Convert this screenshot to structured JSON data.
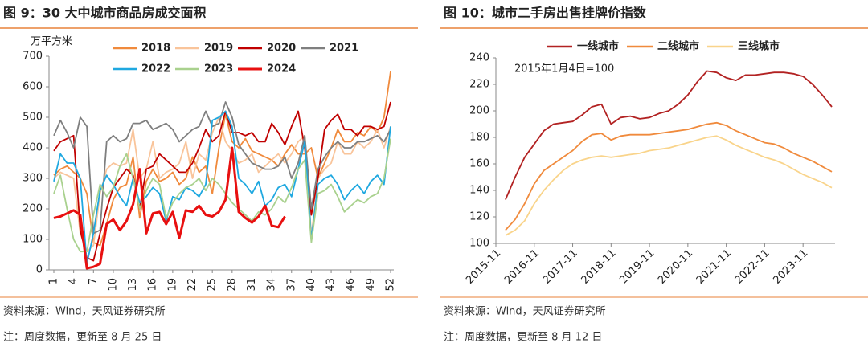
{
  "chart_data": [
    {
      "type": "line",
      "title": "图 9：30 大中城市商品房成交面积",
      "y_label": "万平方米",
      "source": "资料来源：Wind，天风证券研究所",
      "note": "注：周度数据，更新至 8 月 25 日",
      "x": [
        1,
        2,
        3,
        4,
        5,
        6,
        7,
        8,
        9,
        10,
        11,
        12,
        13,
        14,
        15,
        16,
        17,
        18,
        19,
        20,
        21,
        22,
        23,
        24,
        25,
        26,
        27,
        28,
        29,
        30,
        31,
        32,
        33,
        34,
        35,
        36,
        37,
        38,
        39,
        40,
        41,
        42,
        43,
        44,
        45,
        46,
        47,
        48,
        49,
        50,
        51,
        52
      ],
      "xlim": [
        1,
        52
      ],
      "xticks": [
        1,
        4,
        7,
        10,
        13,
        16,
        19,
        22,
        25,
        28,
        31,
        34,
        37,
        40,
        43,
        46,
        49,
        52
      ],
      "ylim": [
        0,
        700
      ],
      "yticks": [
        0,
        100,
        200,
        300,
        400,
        500,
        600,
        700
      ],
      "legend": "top",
      "series": [
        {
          "name": "2018",
          "color": "#F08A3C",
          "values": [
            310,
            330,
            340,
            320,
            300,
            250,
            90,
            80,
            150,
            230,
            270,
            280,
            370,
            170,
            290,
            330,
            290,
            300,
            320,
            280,
            300,
            370,
            320,
            340,
            250,
            400,
            510,
            420,
            400,
            430,
            390,
            380,
            370,
            360,
            340,
            380,
            410,
            380,
            380,
            400,
            300,
            350,
            400,
            460,
            420,
            420,
            450,
            440,
            470,
            450,
            500,
            650
          ]
        },
        {
          "name": "2019",
          "color": "#F9C49A",
          "values": [
            300,
            320,
            310,
            300,
            120,
            60,
            80,
            250,
            330,
            350,
            340,
            350,
            460,
            300,
            330,
            420,
            300,
            320,
            330,
            350,
            420,
            300,
            380,
            360,
            450,
            500,
            420,
            390,
            350,
            360,
            380,
            320,
            340,
            360,
            380,
            350,
            380,
            420,
            440,
            110,
            300,
            330,
            350,
            420,
            380,
            380,
            420,
            400,
            420,
            460,
            400,
            470
          ]
        },
        {
          "name": "2020",
          "color": "#C00000",
          "values": [
            390,
            420,
            430,
            440,
            130,
            40,
            30,
            120,
            200,
            270,
            300,
            330,
            310,
            200,
            330,
            340,
            380,
            360,
            340,
            320,
            320,
            350,
            400,
            460,
            420,
            440,
            520,
            450,
            450,
            440,
            450,
            420,
            420,
            480,
            450,
            410,
            470,
            520,
            400,
            180,
            300,
            460,
            490,
            510,
            460,
            460,
            440,
            470,
            470,
            460,
            470,
            550
          ]
        },
        {
          "name": "2021",
          "color": "#7F7F7F",
          "values": [
            440,
            490,
            450,
            400,
            500,
            470,
            120,
            130,
            420,
            440,
            420,
            430,
            480,
            480,
            490,
            460,
            470,
            480,
            460,
            420,
            440,
            460,
            470,
            520,
            470,
            480,
            550,
            500,
            410,
            380,
            350,
            340,
            330,
            330,
            340,
            370,
            300,
            350,
            440,
            200,
            330,
            370,
            400,
            420,
            400,
            400,
            420,
            420,
            430,
            440,
            420,
            460
          ]
        },
        {
          "name": "2022",
          "color": "#1FA8E0",
          "values": [
            290,
            380,
            350,
            350,
            300,
            20,
            120,
            260,
            310,
            280,
            240,
            210,
            300,
            220,
            240,
            270,
            250,
            160,
            240,
            230,
            270,
            260,
            240,
            280,
            490,
            500,
            520,
            470,
            300,
            280,
            250,
            290,
            210,
            230,
            270,
            280,
            240,
            330,
            420,
            100,
            280,
            300,
            310,
            280,
            230,
            260,
            280,
            250,
            290,
            310,
            280,
            470
          ]
        },
        {
          "name": "2023",
          "color": "#A9D18E",
          "values": [
            250,
            310,
            200,
            100,
            60,
            60,
            180,
            280,
            240,
            270,
            340,
            380,
            300,
            200,
            260,
            300,
            280,
            170,
            220,
            250,
            270,
            280,
            300,
            260,
            300,
            280,
            250,
            220,
            200,
            180,
            160,
            190,
            180,
            200,
            240,
            220,
            270,
            330,
            360,
            90,
            250,
            260,
            280,
            240,
            190,
            210,
            230,
            220,
            240,
            250,
            300,
            430
          ]
        },
        {
          "name": "2024",
          "color": "#E81010",
          "linewidth": 3,
          "values": [
            170,
            175,
            185,
            195,
            180,
            5,
            10,
            20,
            150,
            165,
            130,
            160,
            215,
            330,
            120,
            185,
            190,
            150,
            190,
            105,
            195,
            190,
            210,
            180,
            175,
            190,
            230,
            400,
            190,
            170,
            155,
            175,
            210,
            145,
            140,
            175,
            null,
            null,
            null,
            null,
            null,
            null,
            null,
            null,
            null,
            null,
            null,
            null,
            null,
            null,
            null,
            null
          ]
        }
      ]
    },
    {
      "type": "line",
      "title": "图 10：城市二手房出售挂牌价指数",
      "annotation": "2015年1月4日=100",
      "source": "资料来源：Wind，天风证券研究所",
      "note": "注：周度数据，更新至 8 月 12 日",
      "x": [
        "2016-02",
        "2016-05",
        "2016-08",
        "2016-11",
        "2017-02",
        "2017-05",
        "2017-08",
        "2017-11",
        "2018-02",
        "2018-05",
        "2018-08",
        "2018-11",
        "2019-02",
        "2019-05",
        "2019-08",
        "2019-11",
        "2020-02",
        "2020-05",
        "2020-08",
        "2020-11",
        "2021-02",
        "2021-05",
        "2021-08",
        "2021-11",
        "2022-02",
        "2022-05",
        "2022-08",
        "2022-11",
        "2023-02",
        "2023-05",
        "2023-08",
        "2023-11",
        "2024-02",
        "2024-05",
        "2024-08"
      ],
      "xlim": [
        "2015-11",
        "2024-08"
      ],
      "xticks": [
        "2015-11",
        "2016-11",
        "2017-11",
        "2018-11",
        "2019-11",
        "2020-11",
        "2021-11",
        "2022-11",
        "2023-11"
      ],
      "ylim": [
        100,
        240
      ],
      "yticks": [
        100,
        120,
        140,
        160,
        180,
        200,
        220,
        240
      ],
      "legend": "top",
      "series": [
        {
          "name": "一线城市",
          "color": "#B22222",
          "values": [
            133,
            150,
            165,
            175,
            185,
            190,
            191,
            192,
            197,
            203,
            205,
            190,
            195,
            196,
            194,
            195,
            198,
            200,
            205,
            212,
            222,
            230,
            229,
            225,
            223,
            227,
            227,
            228,
            229,
            229,
            228,
            226,
            220,
            212,
            203
          ]
        },
        {
          "name": "二线城市",
          "color": "#F08A3C",
          "values": [
            110,
            118,
            130,
            145,
            155,
            160,
            165,
            170,
            177,
            182,
            183,
            178,
            181,
            182,
            182,
            182,
            183,
            184,
            185,
            186,
            188,
            190,
            191,
            189,
            185,
            182,
            179,
            176,
            175,
            172,
            168,
            165,
            162,
            158,
            154
          ]
        },
        {
          "name": "三线城市",
          "color": "#F9D48B",
          "values": [
            106,
            110,
            117,
            130,
            140,
            148,
            155,
            160,
            163,
            165,
            166,
            165,
            166,
            167,
            168,
            170,
            171,
            172,
            174,
            176,
            178,
            180,
            181,
            178,
            174,
            171,
            168,
            165,
            163,
            160,
            156,
            152,
            149,
            146,
            142
          ]
        }
      ]
    }
  ]
}
